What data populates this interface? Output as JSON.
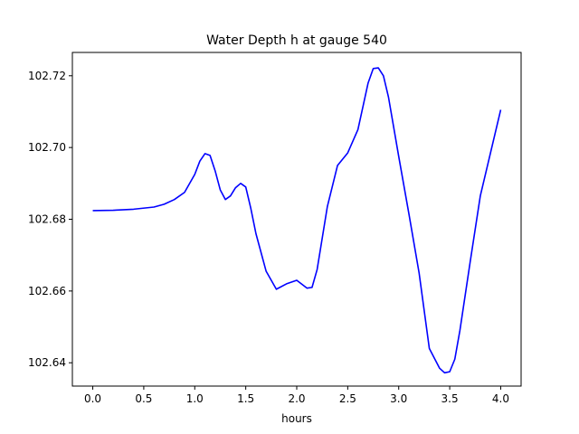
{
  "chart_data": {
    "type": "line",
    "title": "Water Depth h at gauge 540",
    "xlabel": "hours",
    "ylabel": "",
    "xlim": [
      -0.2,
      4.2
    ],
    "ylim": [
      102.6335,
      102.7265
    ],
    "xticks": [
      {
        "value": 0.0,
        "label": "0.0"
      },
      {
        "value": 0.5,
        "label": "0.5"
      },
      {
        "value": 1.0,
        "label": "1.0"
      },
      {
        "value": 1.5,
        "label": "1.5"
      },
      {
        "value": 2.0,
        "label": "2.0"
      },
      {
        "value": 2.5,
        "label": "2.5"
      },
      {
        "value": 3.0,
        "label": "3.0"
      },
      {
        "value": 3.5,
        "label": "3.5"
      },
      {
        "value": 4.0,
        "label": "4.0"
      }
    ],
    "yticks": [
      {
        "value": 102.64,
        "label": "102.64"
      },
      {
        "value": 102.66,
        "label": "102.66"
      },
      {
        "value": 102.68,
        "label": "102.68"
      },
      {
        "value": 102.7,
        "label": "102.70"
      },
      {
        "value": 102.72,
        "label": "102.72"
      }
    ],
    "grid": false,
    "series": [
      {
        "color": "#0000ff",
        "x": [
          0.0,
          0.2,
          0.4,
          0.6,
          0.7,
          0.8,
          0.9,
          1.0,
          1.05,
          1.1,
          1.15,
          1.2,
          1.25,
          1.3,
          1.35,
          1.4,
          1.45,
          1.5,
          1.55,
          1.6,
          1.7,
          1.8,
          1.9,
          2.0,
          2.1,
          2.15,
          2.2,
          2.3,
          2.4,
          2.5,
          2.6,
          2.7,
          2.75,
          2.8,
          2.85,
          2.9,
          3.0,
          3.1,
          3.2,
          3.3,
          3.4,
          3.45,
          3.5,
          3.55,
          3.6,
          3.7,
          3.8,
          3.9,
          4.0
        ],
        "y": [
          102.6824,
          102.6825,
          102.6828,
          102.6834,
          102.6842,
          102.6855,
          102.6875,
          102.6925,
          102.6962,
          102.6983,
          102.6978,
          102.6935,
          102.6882,
          102.6855,
          102.6865,
          102.6888,
          102.69,
          102.689,
          102.683,
          102.676,
          102.6655,
          102.6605,
          102.662,
          102.663,
          102.6608,
          102.661,
          102.666,
          102.6835,
          102.695,
          102.6985,
          102.705,
          102.718,
          102.722,
          102.7222,
          102.72,
          102.714,
          102.6975,
          102.6815,
          102.665,
          102.644,
          102.6385,
          102.6372,
          102.6375,
          102.641,
          102.649,
          102.668,
          102.6865,
          102.6985,
          102.7105
        ]
      }
    ]
  }
}
